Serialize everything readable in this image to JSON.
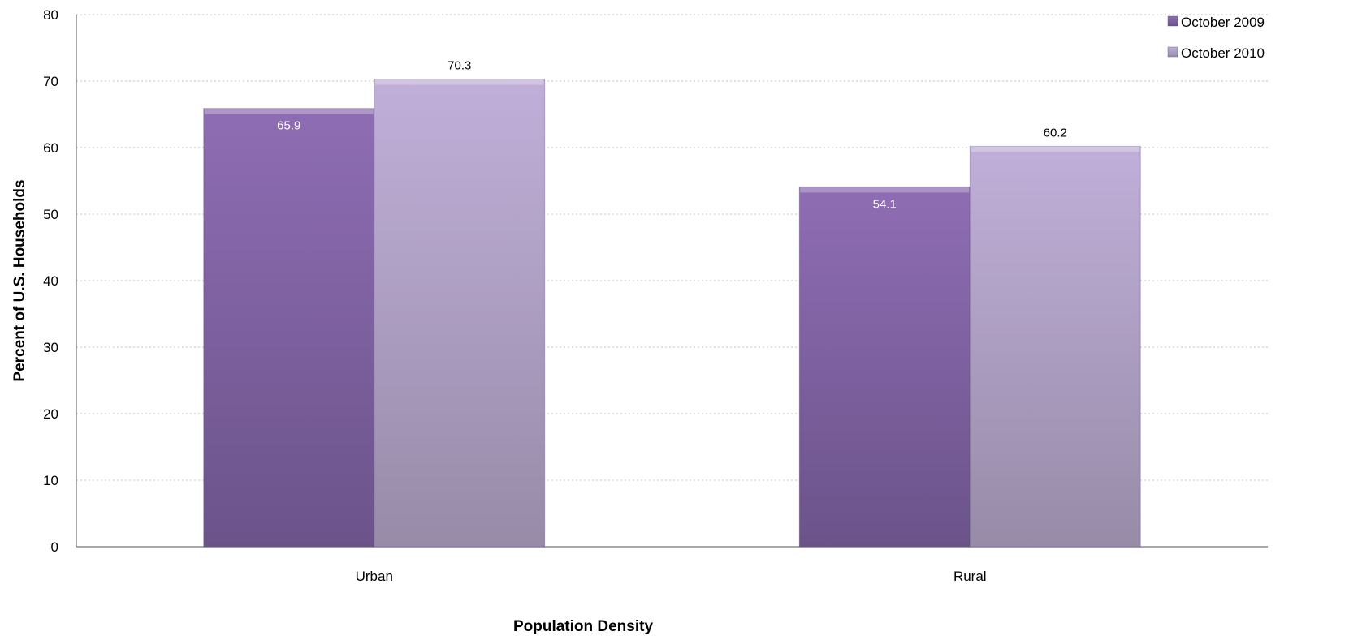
{
  "chart_data": {
    "type": "bar",
    "categories": [
      "Urban",
      "Rural"
    ],
    "series": [
      {
        "name": "October 2009",
        "values": [
          65.9,
          54.1
        ],
        "color": "#8163a6"
      },
      {
        "name": "October 2010",
        "values": [
          70.3,
          60.2
        ],
        "color": "#b3a1c9"
      }
    ],
    "title": "",
    "xlabel": "Population Density",
    "ylabel": "Percent of U.S. Households",
    "ylim": [
      0,
      80
    ],
    "yticks": [
      0,
      10,
      20,
      30,
      40,
      50,
      60,
      70,
      80
    ],
    "data_labels": [
      "65.9",
      "70.3",
      "54.1",
      "60.2"
    ],
    "grid": true,
    "legend_position": "top-right"
  }
}
